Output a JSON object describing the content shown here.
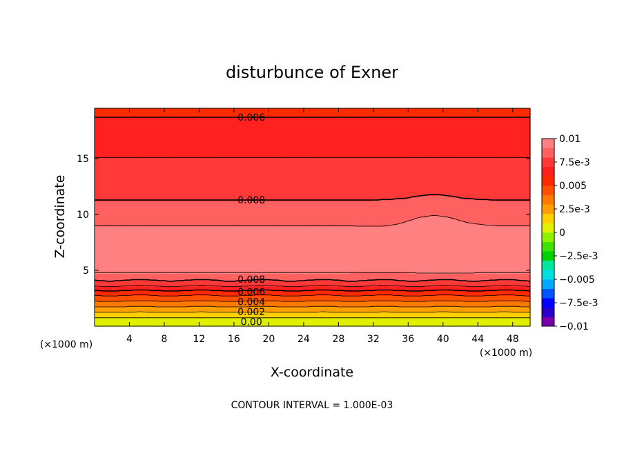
{
  "chart_data": {
    "type": "heatmap",
    "title": "disturbunce of Exner",
    "xlabel": "X-coordinate",
    "ylabel": "Z-coordinate",
    "x_unit": "(×1000 m)",
    "y_unit": "(×1000 m)",
    "xlim": [
      0,
      50
    ],
    "ylim": [
      0,
      19.5
    ],
    "x_ticks": [
      "4",
      "8",
      "12",
      "16",
      "20",
      "24",
      "28",
      "32",
      "36",
      "40",
      "44",
      "48"
    ],
    "y_ticks": [
      "5",
      "10",
      "15"
    ],
    "contour_interval_text": "CONTOUR INTERVAL = 1.000E-03",
    "contour_labels": [
      {
        "text": "0.006",
        "x": 18,
        "z": 18.7
      },
      {
        "text": "0.008",
        "x": 18,
        "z": 11.3
      },
      {
        "text": "0.008",
        "x": 18,
        "z": 4.2
      },
      {
        "text": "0.006",
        "x": 18,
        "z": 3.1
      },
      {
        "text": "0.004",
        "x": 18,
        "z": 2.2
      },
      {
        "text": "0.002",
        "x": 18,
        "z": 1.3
      },
      {
        "text": "0.00",
        "x": 18,
        "z": 0.4
      }
    ],
    "colorbar": {
      "min": -0.01,
      "max": 0.01,
      "tick_labels": [
        "0.01",
        "7.5e-3",
        "0.005",
        "2.5e-3",
        "0",
        "-2.5e-3",
        "-0.005",
        "-7.5e-3",
        "-0.01"
      ],
      "colors": [
        "#7a00a8",
        "#2a00c8",
        "#0000ff",
        "#0055ff",
        "#00a8ff",
        "#00e0e0",
        "#00e8a0",
        "#00d000",
        "#40e000",
        "#90f000",
        "#e0f000",
        "#ffd000",
        "#ffa000",
        "#ff7800",
        "#ff5000",
        "#ff2a00",
        "#ff2020",
        "#ff3838",
        "#ff6060",
        "#ff8080"
      ]
    },
    "profile": [
      {
        "z": 0.0,
        "v": 0.0
      },
      {
        "z": 0.5,
        "v": 0.0005
      },
      {
        "z": 1.0,
        "v": 0.0015
      },
      {
        "z": 1.5,
        "v": 0.0025
      },
      {
        "z": 2.0,
        "v": 0.0035
      },
      {
        "z": 2.5,
        "v": 0.0045
      },
      {
        "z": 3.0,
        "v": 0.0055
      },
      {
        "z": 3.5,
        "v": 0.0068
      },
      {
        "z": 4.0,
        "v": 0.0078
      },
      {
        "z": 4.5,
        "v": 0.0088
      },
      {
        "z": 5.5,
        "v": 0.0095
      },
      {
        "z": 7.0,
        "v": 0.0098
      },
      {
        "z": 8.5,
        "v": 0.0092
      },
      {
        "z": 10.0,
        "v": 0.0086
      },
      {
        "z": 11.5,
        "v": 0.0079
      },
      {
        "z": 13.5,
        "v": 0.0074
      },
      {
        "z": 15.5,
        "v": 0.0069
      },
      {
        "z": 17.5,
        "v": 0.0064
      },
      {
        "z": 18.7,
        "v": 0.006
      },
      {
        "z": 19.5,
        "v": 0.0057
      }
    ]
  }
}
